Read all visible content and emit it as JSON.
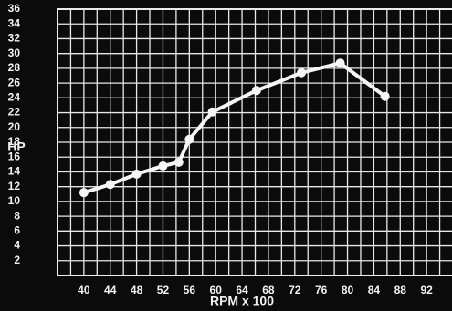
{
  "chart_data": {
    "type": "line",
    "x_label": "RPM x 100",
    "y_label": "HP",
    "x": [
      40,
      44,
      48,
      52,
      54.4,
      56,
      59.5,
      66.2,
      73,
      78.9,
      85.7
    ],
    "series": [
      {
        "name": "HP",
        "color": "#f5f5f5",
        "values": [
          11.2,
          12.3,
          13.7,
          14.8,
          15.3,
          18.4,
          22.1,
          25,
          27.4,
          28.7,
          24.2
        ]
      }
    ],
    "xlim": [
      36,
      96
    ],
    "xticks": [
      40,
      44,
      48,
      52,
      56,
      60,
      64,
      68,
      72,
      76,
      80,
      84,
      88,
      92
    ],
    "ylim": [
      0,
      36
    ],
    "yticks": [
      2,
      4,
      6,
      8,
      10,
      12,
      14,
      16,
      18,
      20,
      22,
      24,
      26,
      28,
      30,
      32,
      34,
      36
    ],
    "grid": true
  }
}
